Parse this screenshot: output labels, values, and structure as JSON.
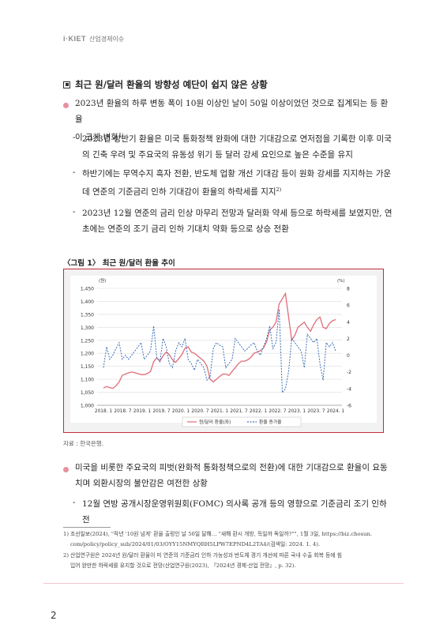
{
  "header": {
    "logo": "i·KIET",
    "series": "산업경제이슈"
  },
  "section_title": "최근 원/달러 환율의 방향성 예단이 쉽지 않은 상황",
  "bullet1": {
    "line1": "2023년 환율의 하루 변동 폭이 10원 이상인 날이 50일 이상이었던 것으로 집계되는 등 환율",
    "line2": "이 크게 변화",
    "fn": "1)"
  },
  "sub1": {
    "line1": "2023년 상반기 환율은 미국 통화정책 완화에 대한 기대감으로 연저점을 기록한 이후 미국",
    "line2": "의 긴축 우려 및 주요국의 유동성 위기 등 달러 강세 요인으로 높은 수준을 유지"
  },
  "sub2": {
    "line1": "하반기에는 무역수지 흑자 전환, 반도체 업황 개선 기대감 등이 원화 강세를 지지하는 가운",
    "line2": "데 연준의 기준금리 인하 기대감이 환율의 하락세를 지지",
    "fn": "2)"
  },
  "sub3": {
    "line1": "2023년 12월 연준의 금리 인상 마무리 전망과 달러화 약세 등으로 하락세를 보였지만, 연",
    "line2": "초에는 연준의 조기 금리 인하 기대치 약화 등으로 상승 전환"
  },
  "figure_title": "〈그림 1〉 최근 원/달러 환율 추이",
  "chart_data": {
    "type": "line",
    "left_unit": "(원)",
    "right_unit": "(%)",
    "ylim_left": [
      1000,
      1450
    ],
    "ylim_right": [
      -6,
      8
    ],
    "left_ticks": [
      "1,000",
      "1,050",
      "1,100",
      "1,150",
      "1,200",
      "1,250",
      "1,300",
      "1,350",
      "1,400",
      "1,450"
    ],
    "right_ticks": [
      "-6",
      "-4",
      "-2",
      "0",
      "2",
      "4",
      "6",
      "8"
    ],
    "x_ticks": [
      "2018. 1",
      "2018. 7",
      "2019. 1",
      "2019. 7",
      "2020. 1",
      "2020. 7",
      "2021. 1",
      "2021. 7",
      "2022. 1",
      "2022. 7",
      "2023. 1",
      "2023. 7",
      "2024. 1"
    ],
    "grid": true,
    "legend_position": "bottom",
    "series": [
      {
        "name": "원/달러 환율(좌)",
        "color": "#e06c78",
        "style": "solid",
        "axis": "left",
        "values": [
          1067,
          1072,
          1068,
          1065,
          1075,
          1090,
          1115,
          1120,
          1125,
          1128,
          1125,
          1122,
          1118,
          1118,
          1122,
          1130,
          1168,
          1182,
          1170,
          1190,
          1205,
          1195,
          1175,
          1165,
          1180,
          1195,
          1220,
          1225,
          1205,
          1200,
          1190,
          1180,
          1170,
          1150,
          1100,
          1090,
          1100,
          1110,
          1120,
          1120,
          1115,
          1130,
          1145,
          1160,
          1170,
          1170,
          1175,
          1185,
          1200,
          1205,
          1210,
          1220,
          1245,
          1290,
          1300,
          1320,
          1390,
          1410,
          1430,
          1340,
          1250,
          1270,
          1300,
          1310,
          1320,
          1300,
          1285,
          1310,
          1330,
          1340,
          1300,
          1295,
          1315,
          1325,
          1330
        ]
      },
      {
        "name": "환율 증가율",
        "color": "#3f6fb5",
        "style": "dashed",
        "axis": "right",
        "values": [
          -1.5,
          1,
          -0.5,
          0,
          0.8,
          1.5,
          -0.5,
          0,
          -0.5,
          0,
          0.5,
          1,
          1.5,
          -0.5,
          0,
          0.5,
          3.5,
          -0.3,
          -0.8,
          2,
          1,
          -1,
          -1.5,
          0.5,
          1.5,
          1,
          2,
          -0.5,
          -1,
          -1.8,
          -0.5,
          -1,
          -1.5,
          -3,
          -2.5,
          0.8,
          1.5,
          1.2,
          1,
          -1.5,
          -1,
          -0.5,
          2,
          1.5,
          1,
          0.5,
          0.8,
          1.2,
          1.5,
          0.5,
          0,
          1,
          2,
          3.5,
          0.8,
          1.5,
          5.5,
          -4.5,
          -4,
          -2,
          2,
          1.5,
          1,
          0.5,
          -1.5,
          2.5,
          2,
          1.5,
          2,
          -1,
          -3,
          1.5,
          1,
          1.5,
          0.5
        ]
      }
    ]
  },
  "source": "자료 : 한국은행.",
  "bullet2": {
    "line1": "미국을 비롯한 주요국의 피벗(완화적 통화정책으로의 전환)에 대한 기대감으로 환율이 요동",
    "line2": "치며 외환시장의 불안감은 여전한 상황"
  },
  "sub4": {
    "line1": "12월 연방 공개시장운영위원회(FOMC) 의사록 공개 등의 영향으로 기준금리 조기 인하 전"
  },
  "footnotes": [
    {
      "num": "1)",
      "line1": "조선일보(2024), \"작년 '10원 넘게' 환율 출렁인 날 50일 달해… \"새해 환시 개방, 득일까 독일까?\"\", 1월 3일, https://biz.chosun.",
      "line2": "com/policy/policy_sub/2024/01/03/OYY15NMYQRH5LPW7EPND4L2TA4/(검색일: 2024. 1. 4)."
    },
    {
      "num": "2)",
      "line1": "산업연구원은 2024년 원/달러 환율이 미 연준의 기준금리 인하 가능성과 반도체 경기 개선에 따른 국내 수출 회복 등에 힘",
      "line2": "입어 완만한 하락세를 유지할 것으로 전망(산업연구원(2023), 『2024년 경제·산업 전망』, p. 32)."
    }
  ],
  "page_number": "2"
}
